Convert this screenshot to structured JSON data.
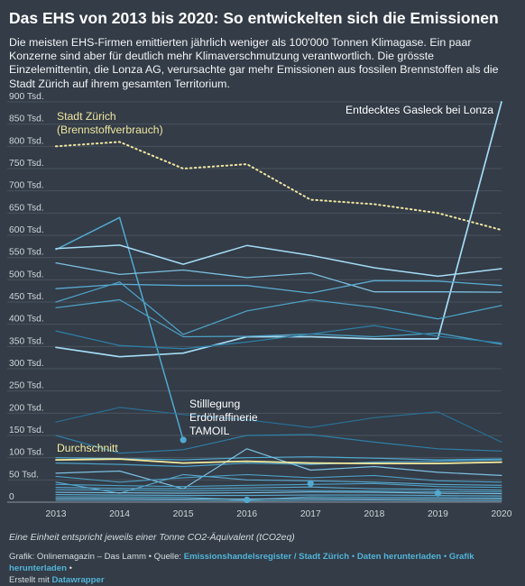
{
  "page": {
    "title": "Das EHS von 2013 bis 2020: So entwickelten sich die Emissionen",
    "description": "Die meisten EHS-Firmen emittierten jährlich weniger als 100'000 Tonnen Klimagase. Ein paar Konzerne sind aber für deutlich mehr Klimaverschmutzung verantwortlich. Die grösste Einzelemittentin, die Lonza AG, verursachte gar mehr Emissionen aus fossilen Brennstoffen als die Stadt Zürich auf ihrem gesamten Territorium.",
    "note": "Eine Einheit entspricht jeweils einer Tonne CO2-Äquivalent (tCO2eq)",
    "footer": {
      "grafik_label": "Grafik: Onlinemagazin – Das Lamm",
      "quelle_label": "Quelle:",
      "source_link": "Emissionshandelsregister / Stadt Zürich",
      "data_link": "Daten herunterladen",
      "graphic_link": "Grafik herunterladen",
      "created_label": "Erstellt mit",
      "tool_link": "Datawrapper"
    }
  },
  "chart_data": {
    "type": "line",
    "x": [
      2013,
      2014,
      2015,
      2016,
      2017,
      2018,
      2019,
      2020
    ],
    "xticks": [
      "2013",
      "2014",
      "2015",
      "2016",
      "2017",
      "2018",
      "2019",
      "2020"
    ],
    "ylim": [
      0,
      900000
    ],
    "yticks": [
      {
        "value": 900000,
        "label": "900 Tsd."
      },
      {
        "value": 850000,
        "label": "850 Tsd."
      },
      {
        "value": 800000,
        "label": "800 Tsd."
      },
      {
        "value": 750000,
        "label": "750 Tsd."
      },
      {
        "value": 700000,
        "label": "700 Tsd."
      },
      {
        "value": 650000,
        "label": "650 Tsd."
      },
      {
        "value": 600000,
        "label": "600 Tsd."
      },
      {
        "value": 550000,
        "label": "550 Tsd."
      },
      {
        "value": 500000,
        "label": "500 Tsd."
      },
      {
        "value": 450000,
        "label": "450 Tsd."
      },
      {
        "value": 400000,
        "label": "400 Tsd."
      },
      {
        "value": 350000,
        "label": "350 Tsd."
      },
      {
        "value": 300000,
        "label": "300 Tsd."
      },
      {
        "value": 250000,
        "label": "250 Tsd."
      },
      {
        "value": 200000,
        "label": "200 Tsd."
      },
      {
        "value": 150000,
        "label": "150 Tsd."
      },
      {
        "value": 100000,
        "label": "100 Tsd."
      },
      {
        "value": 50000,
        "label": "50 Tsd."
      },
      {
        "value": 0,
        "label": "0"
      }
    ],
    "grid": true,
    "colors": {
      "highlight": "#a5dcf5",
      "firm": "#4d9fc4",
      "firm_dark": "#2f7ea6",
      "stadt_zuerich": "#f0e6a0",
      "durchschnitt": "#f5eca0",
      "annotation": "#ffffff"
    },
    "annotations": [
      {
        "text_lines": [
          "Stadt Zürich",
          "(Brennstoffverbrauch)"
        ],
        "color": "#f0e6a0"
      },
      {
        "text_lines": [
          "Entdecktes Gasleck bei Lonza"
        ],
        "color": "#ffffff"
      },
      {
        "text_lines": [
          "Stilllegung",
          "Erdölraffinerie",
          "TAMOIL"
        ],
        "color": "#ffffff"
      },
      {
        "text_lines": [
          "Durchschnitt"
        ],
        "color": "#f5eca0"
      }
    ],
    "series": [
      {
        "values": [
          800000,
          810000,
          750000,
          760000,
          680000,
          670000,
          650000,
          612000
        ],
        "style": "dotted",
        "color": "#f0e6a0",
        "width": 2
      },
      {
        "values": [
          348000,
          327000,
          335000,
          372000,
          372000,
          367000,
          367000,
          900000
        ],
        "style": "solid",
        "color": "#a5dcf5",
        "width": 1.7
      },
      {
        "values": [
          568000,
          640000,
          140000,
          null,
          null,
          null,
          null,
          null
        ],
        "style": "solid",
        "color": "#52a9d0",
        "width": 1.5
      },
      {
        "values": [
          570000,
          578000,
          535000,
          577000,
          555000,
          527000,
          508000,
          525000
        ],
        "style": "solid",
        "color": "#a5dcf5",
        "width": 1.5
      },
      {
        "values": [
          538000,
          512000,
          522000,
          505000,
          515000,
          473000,
          473000,
          472000
        ],
        "style": "solid",
        "color": "#7cc0e0",
        "width": 1.3
      },
      {
        "values": [
          480000,
          490000,
          487000,
          487000,
          470000,
          498000,
          497000,
          487000
        ],
        "style": "solid",
        "color": "#5aa9cf",
        "width": 1.3
      },
      {
        "values": [
          450000,
          495000,
          377000,
          430000,
          455000,
          438000,
          412000,
          442000
        ],
        "style": "solid",
        "color": "#4d9fc4",
        "width": 1.3
      },
      {
        "values": [
          437000,
          455000,
          372000,
          373000,
          378000,
          372000,
          380000,
          355000
        ],
        "style": "solid",
        "color": "#4d9fc4",
        "width": 1.3
      },
      {
        "values": [
          385000,
          352000,
          345000,
          360000,
          378000,
          397000,
          373000,
          358000
        ],
        "style": "solid",
        "color": "#2f7ea6",
        "width": 1.3
      },
      {
        "values": [
          180000,
          213000,
          197000,
          185000,
          168000,
          190000,
          203000,
          135000
        ],
        "style": "solid",
        "color": "#2a6f94",
        "width": 1.2
      },
      {
        "values": [
          150000,
          110000,
          118000,
          150000,
          152000,
          135000,
          120000,
          115000
        ],
        "style": "solid",
        "color": "#2f7ea6",
        "width": 1.2
      },
      {
        "values": [
          100000,
          98000,
          95000,
          100000,
          102000,
          99000,
          95000,
          97000
        ],
        "style": "solid",
        "color": "#52a9d0",
        "width": 1.2
      },
      {
        "values": [
          88000,
          85000,
          80000,
          88000,
          85000,
          90000,
          92000,
          95000
        ],
        "style": "solid",
        "color": "#4d9fc4",
        "width": 1.2
      },
      {
        "values": [
          65000,
          70000,
          30000,
          120000,
          72000,
          80000,
          67000,
          60000
        ],
        "style": "solid",
        "color": "#7cc0e0",
        "width": 1.2
      },
      {
        "values": [
          58000,
          45000,
          55000,
          62000,
          55000,
          60000,
          48000,
          45000
        ],
        "style": "solid",
        "color": "#4d9fc4",
        "width": 1.1
      },
      {
        "values": [
          45000,
          20000,
          62000,
          50000,
          48000,
          45000,
          40000,
          38000
        ],
        "style": "solid",
        "color": "#5aa9cf",
        "width": 1.1
      },
      {
        "values": [
          40000,
          37000,
          35000,
          38000,
          40000,
          42000,
          35000,
          33000
        ],
        "style": "solid",
        "color": "#4d9fc4",
        "width": 1.1
      },
      {
        "values": [
          33000,
          31000,
          30000,
          32000,
          34000,
          30000,
          29000,
          27000
        ],
        "style": "solid",
        "color": "#5aa9cf",
        "width": 1.1
      },
      {
        "values": [
          28000,
          27000,
          25000,
          27000,
          26000,
          25000,
          24000,
          23000
        ],
        "style": "solid",
        "color": "#4d9fc4",
        "width": 1.1
      },
      {
        "values": [
          22000,
          21000,
          20000,
          21000,
          23000,
          22000,
          20000,
          19000
        ],
        "style": "solid",
        "color": "#7cc0e0",
        "width": 1.1
      },
      {
        "values": [
          17000,
          16000,
          15000,
          15000,
          16000,
          16000,
          15000,
          14000
        ],
        "style": "solid",
        "color": "#5aa9cf",
        "width": 1.1
      },
      {
        "values": [
          12000,
          12000,
          11000,
          5000,
          12000,
          11000,
          11000,
          10000
        ],
        "style": "solid",
        "color": "#4d9fc4",
        "width": 1.1
      },
      {
        "values": [
          8000,
          8000,
          7000,
          7000,
          8000,
          7000,
          7000,
          7000
        ],
        "style": "solid",
        "color": "#7cc0e0",
        "width": 1.1
      },
      {
        "values": [
          4000,
          4000,
          4000,
          3000,
          4000,
          4000,
          3000,
          3000
        ],
        "style": "solid",
        "color": "#5aa9cf",
        "width": 1.1
      },
      {
        "values": [
          95000,
          97000,
          88000,
          92000,
          88000,
          87000,
          87000,
          90000
        ],
        "style": "solid",
        "color": "#f5eca0",
        "width": 1.8
      }
    ],
    "markers": [
      {
        "x": 2015,
        "y": 140000
      },
      {
        "x": 2016,
        "y": 5000
      },
      {
        "x": 2017,
        "y": 42000
      },
      {
        "x": 2019,
        "y": 20000
      }
    ]
  }
}
